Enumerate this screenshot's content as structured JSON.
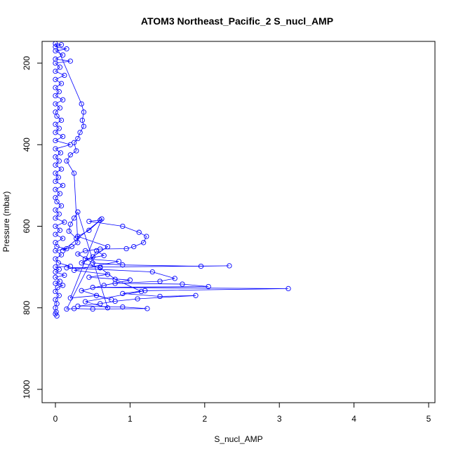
{
  "chart_data": {
    "type": "scatter",
    "title": "ATOM3 Northeast_Pacific_2 S_nucl_AMP",
    "xlabel": "S_nucl_AMP",
    "ylabel": "Pressure (mbar)",
    "xlim": [
      0,
      5
    ],
    "ylim": [
      1030,
      150
    ],
    "y_reversed": true,
    "x_ticks": [
      0,
      1,
      2,
      3,
      4,
      5
    ],
    "y_ticks": [
      200,
      400,
      600,
      800,
      1000
    ],
    "grid": false,
    "legend": "none",
    "colors": {
      "series": "#0000ff",
      "axis": "#000000"
    },
    "marker": "open-circle",
    "series": [
      {
        "values": [
          [
            0.02,
            820
          ],
          [
            0.0,
            815
          ],
          [
            0.01,
            810
          ],
          [
            0.0,
            800
          ],
          [
            0.02,
            790
          ],
          [
            0.0,
            780
          ],
          [
            0.05,
            770
          ],
          [
            0.0,
            760
          ],
          [
            0.03,
            750
          ],
          [
            0.1,
            745
          ],
          [
            0.0,
            740
          ],
          [
            0.06,
            735
          ],
          [
            0.0,
            725
          ],
          [
            0.12,
            720
          ],
          [
            0.0,
            712
          ],
          [
            0.05,
            706
          ],
          [
            0.0,
            700
          ],
          [
            0.2,
            698
          ],
          [
            0.04,
            690
          ],
          [
            0.0,
            680
          ],
          [
            0.08,
            670
          ],
          [
            0.0,
            660
          ],
          [
            0.15,
            655
          ],
          [
            0.02,
            650
          ],
          [
            0.0,
            640
          ],
          [
            0.1,
            630
          ],
          [
            0.0,
            620
          ],
          [
            0.06,
            610
          ],
          [
            0.0,
            600
          ],
          [
            0.12,
            590
          ],
          [
            0.0,
            580
          ],
          [
            0.05,
            570
          ],
          [
            0.0,
            560
          ],
          [
            0.08,
            550
          ],
          [
            0.02,
            540
          ],
          [
            0.0,
            530
          ],
          [
            0.06,
            520
          ],
          [
            0.0,
            510
          ],
          [
            0.1,
            500
          ],
          [
            0.0,
            490
          ],
          [
            0.04,
            480
          ],
          [
            0.0,
            470
          ],
          [
            0.08,
            460
          ],
          [
            0.0,
            450
          ],
          [
            0.05,
            440
          ],
          [
            0.0,
            430
          ],
          [
            0.07,
            420
          ],
          [
            0.0,
            410
          ],
          [
            0.2,
            400
          ],
          [
            0.0,
            390
          ],
          [
            0.1,
            380
          ],
          [
            0.0,
            370
          ],
          [
            0.05,
            360
          ],
          [
            0.0,
            350
          ],
          [
            0.08,
            340
          ],
          [
            0.02,
            330
          ],
          [
            0.0,
            320
          ],
          [
            0.06,
            310
          ],
          [
            0.0,
            300
          ],
          [
            0.1,
            290
          ],
          [
            0.0,
            280
          ],
          [
            0.05,
            270
          ],
          [
            0.0,
            260
          ],
          [
            0.08,
            250
          ],
          [
            0.0,
            240
          ],
          [
            0.12,
            230
          ],
          [
            0.0,
            220
          ],
          [
            0.06,
            210
          ],
          [
            0.0,
            200
          ],
          [
            0.2,
            195
          ],
          [
            0.0,
            190
          ],
          [
            0.1,
            180
          ],
          [
            0.0,
            170
          ],
          [
            0.15,
            165
          ],
          [
            0.0,
            160
          ],
          [
            0.08,
            155
          ],
          [
            0.0,
            152
          ],
          [
            0.35,
            300
          ],
          [
            0.38,
            320
          ],
          [
            0.36,
            340
          ],
          [
            0.38,
            355
          ],
          [
            0.33,
            370
          ],
          [
            0.3,
            385
          ],
          [
            0.25,
            395
          ],
          [
            0.28,
            415
          ],
          [
            0.2,
            425
          ],
          [
            0.15,
            440
          ],
          [
            0.25,
            470
          ],
          [
            0.3,
            640
          ],
          [
            0.22,
            650
          ],
          [
            0.1,
            660
          ],
          [
            0.6,
            585
          ],
          [
            0.45,
            588
          ],
          [
            0.9,
            600
          ],
          [
            1.12,
            615
          ],
          [
            1.22,
            625
          ],
          [
            1.18,
            640
          ],
          [
            1.05,
            650
          ],
          [
            0.95,
            655
          ],
          [
            0.6,
            656
          ],
          [
            0.4,
            660
          ],
          [
            0.3,
            668
          ],
          [
            0.5,
            690
          ],
          [
            0.9,
            695
          ],
          [
            1.95,
            698
          ],
          [
            2.33,
            697
          ],
          [
            0.6,
            700
          ],
          [
            0.15,
            702
          ],
          [
            1.3,
            712
          ],
          [
            1.6,
            728
          ],
          [
            1.4,
            735
          ],
          [
            0.8,
            740
          ],
          [
            1.7,
            742
          ],
          [
            2.05,
            748
          ],
          [
            0.5,
            750
          ],
          [
            3.12,
            753
          ],
          [
            1.2,
            758
          ],
          [
            0.9,
            765
          ],
          [
            1.4,
            772
          ],
          [
            1.88,
            770
          ],
          [
            1.1,
            778
          ],
          [
            0.8,
            784
          ],
          [
            0.6,
            790
          ],
          [
            0.3,
            796
          ],
          [
            0.9,
            798
          ],
          [
            1.23,
            802
          ],
          [
            0.5,
            803
          ],
          [
            0.25,
            802
          ],
          [
            0.15,
            803
          ],
          [
            0.55,
            660
          ],
          [
            0.65,
            672
          ],
          [
            0.4,
            680
          ],
          [
            0.85,
            686
          ],
          [
            0.25,
            708
          ],
          [
            0.7,
            718
          ],
          [
            0.45,
            725
          ],
          [
            1.0,
            732
          ],
          [
            0.65,
            745
          ],
          [
            0.35,
            758
          ],
          [
            0.75,
            780
          ],
          [
            0.55,
            770
          ],
          [
            0.2,
            776
          ],
          [
            0.62,
            582
          ],
          [
            0.45,
            610
          ],
          [
            0.3,
            625
          ],
          [
            0.7,
            650
          ],
          [
            0.5,
            675
          ],
          [
            0.35,
            690
          ],
          [
            0.6,
            702
          ],
          [
            0.8,
            730
          ],
          [
            1.15,
            760
          ],
          [
            0.4,
            785
          ],
          [
            0.7,
            800
          ],
          [
            0.3,
            565
          ],
          [
            0.25,
            580
          ],
          [
            0.2,
            595
          ],
          [
            0.18,
            612
          ],
          [
            0.28,
            630
          ]
        ]
      }
    ]
  }
}
